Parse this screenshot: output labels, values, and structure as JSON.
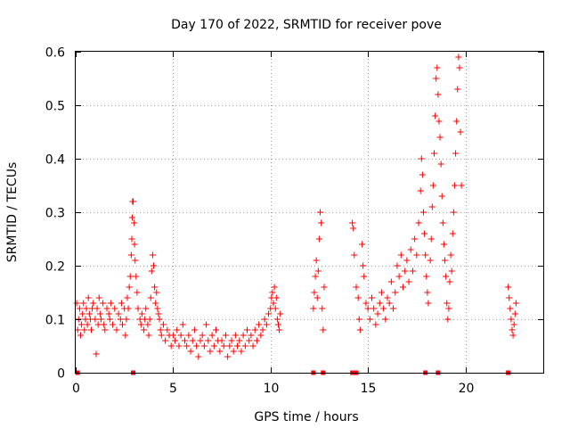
{
  "chart_data": {
    "type": "scatter",
    "title": "Day 170 of 2022, SRMTID for receiver pove",
    "xlabel": "GPS time / hours",
    "ylabel": "SRMTID / TECUs",
    "xlim": [
      0,
      24
    ],
    "ylim": [
      0,
      0.6
    ],
    "xticks": [
      0,
      5,
      10,
      15,
      20
    ],
    "yticks": [
      0,
      0.1,
      0.2,
      0.3,
      0.4,
      0.5,
      0.6
    ],
    "xtick_labels": [
      "0",
      "5",
      "10",
      "15",
      "20"
    ],
    "ytick_labels": [
      "0",
      "0.1",
      "0.2",
      "0.3",
      "0.4",
      "0.5",
      "0.6"
    ],
    "grid": true,
    "marker": "+",
    "color": "#ff0000",
    "series": [
      {
        "name": "SRMTID",
        "points": [
          [
            0.05,
            0.13
          ],
          [
            0.1,
            0.08
          ],
          [
            0.15,
            0.1
          ],
          [
            0.2,
            0.12
          ],
          [
            0.25,
            0.07
          ],
          [
            0.3,
            0.09
          ],
          [
            0.35,
            0.11
          ],
          [
            0.4,
            0.13
          ],
          [
            0.45,
            0.08
          ],
          [
            0.5,
            0.1
          ],
          [
            0.55,
            0.12
          ],
          [
            0.6,
            0.09
          ],
          [
            0.65,
            0.14
          ],
          [
            0.7,
            0.11
          ],
          [
            0.75,
            0.1
          ],
          [
            0.8,
            0.08
          ],
          [
            0.85,
            0.12
          ],
          [
            0.9,
            0.13
          ],
          [
            1.0,
            0.1
          ],
          [
            1.05,
            0.035
          ],
          [
            1.1,
            0.12
          ],
          [
            1.15,
            0.09
          ],
          [
            1.2,
            0.14
          ],
          [
            1.25,
            0.11
          ],
          [
            1.3,
            0.1
          ],
          [
            1.4,
            0.13
          ],
          [
            1.45,
            0.09
          ],
          [
            1.5,
            0.08
          ],
          [
            1.6,
            0.12
          ],
          [
            1.7,
            0.11
          ],
          [
            1.75,
            0.1
          ],
          [
            1.8,
            0.13
          ],
          [
            1.9,
            0.09
          ],
          [
            2.0,
            0.12
          ],
          [
            2.1,
            0.08
          ],
          [
            2.2,
            0.11
          ],
          [
            2.3,
            0.1
          ],
          [
            2.35,
            0.13
          ],
          [
            2.4,
            0.09
          ],
          [
            2.5,
            0.12
          ],
          [
            2.55,
            0.07
          ],
          [
            2.6,
            0.1
          ],
          [
            2.65,
            0.14
          ],
          [
            2.7,
            0.12
          ],
          [
            2.75,
            0.16
          ],
          [
            2.8,
            0.18
          ],
          [
            2.85,
            0.22
          ],
          [
            2.88,
            0.25
          ],
          [
            2.9,
            0.29
          ],
          [
            2.92,
            0.32
          ],
          [
            2.95,
            0.32
          ],
          [
            3.0,
            0.28
          ],
          [
            3.02,
            0.24
          ],
          [
            3.05,
            0.21
          ],
          [
            3.1,
            0.18
          ],
          [
            3.15,
            0.15
          ],
          [
            3.2,
            0.12
          ],
          [
            3.3,
            0.1
          ],
          [
            3.35,
            0.09
          ],
          [
            3.4,
            0.11
          ],
          [
            3.5,
            0.08
          ],
          [
            3.55,
            0.1
          ],
          [
            3.6,
            0.12
          ],
          [
            3.7,
            0.09
          ],
          [
            3.75,
            0.07
          ],
          [
            3.8,
            0.1
          ],
          [
            3.85,
            0.14
          ],
          [
            3.9,
            0.19
          ],
          [
            3.95,
            0.22
          ],
          [
            4.0,
            0.2
          ],
          [
            4.05,
            0.16
          ],
          [
            4.1,
            0.13
          ],
          [
            4.15,
            0.15
          ],
          [
            4.2,
            0.12
          ],
          [
            4.25,
            0.11
          ],
          [
            4.3,
            0.1
          ],
          [
            4.35,
            0.08
          ],
          [
            4.4,
            0.07
          ],
          [
            4.5,
            0.09
          ],
          [
            4.6,
            0.06
          ],
          [
            4.7,
            0.08
          ],
          [
            4.8,
            0.07
          ],
          [
            4.9,
            0.05
          ],
          [
            5.0,
            0.07
          ],
          [
            5.1,
            0.06
          ],
          [
            5.2,
            0.08
          ],
          [
            5.3,
            0.05
          ],
          [
            5.4,
            0.07
          ],
          [
            5.5,
            0.09
          ],
          [
            5.6,
            0.06
          ],
          [
            5.7,
            0.05
          ],
          [
            5.8,
            0.07
          ],
          [
            5.9,
            0.04
          ],
          [
            6.0,
            0.06
          ],
          [
            6.1,
            0.08
          ],
          [
            6.2,
            0.05
          ],
          [
            6.3,
            0.03
          ],
          [
            6.4,
            0.06
          ],
          [
            6.5,
            0.07
          ],
          [
            6.6,
            0.05
          ],
          [
            6.7,
            0.09
          ],
          [
            6.8,
            0.06
          ],
          [
            6.9,
            0.04
          ],
          [
            7.0,
            0.07
          ],
          [
            7.1,
            0.05
          ],
          [
            7.2,
            0.08
          ],
          [
            7.3,
            0.06
          ],
          [
            7.4,
            0.04
          ],
          [
            7.5,
            0.06
          ],
          [
            7.6,
            0.05
          ],
          [
            7.7,
            0.07
          ],
          [
            7.8,
            0.03
          ],
          [
            7.9,
            0.05
          ],
          [
            8.0,
            0.06
          ],
          [
            8.1,
            0.04
          ],
          [
            8.2,
            0.07
          ],
          [
            8.3,
            0.05
          ],
          [
            8.4,
            0.06
          ],
          [
            8.5,
            0.04
          ],
          [
            8.6,
            0.07
          ],
          [
            8.7,
            0.05
          ],
          [
            8.8,
            0.08
          ],
          [
            8.9,
            0.06
          ],
          [
            9.0,
            0.07
          ],
          [
            9.1,
            0.05
          ],
          [
            9.2,
            0.08
          ],
          [
            9.3,
            0.06
          ],
          [
            9.4,
            0.09
          ],
          [
            9.5,
            0.07
          ],
          [
            9.6,
            0.08
          ],
          [
            9.7,
            0.1
          ],
          [
            9.8,
            0.09
          ],
          [
            9.9,
            0.11
          ],
          [
            10.0,
            0.12
          ],
          [
            10.05,
            0.14
          ],
          [
            10.1,
            0.15
          ],
          [
            10.15,
            0.13
          ],
          [
            10.2,
            0.16
          ],
          [
            10.25,
            0.12
          ],
          [
            10.3,
            0.14
          ],
          [
            10.35,
            0.1
          ],
          [
            10.4,
            0.09
          ],
          [
            10.45,
            0.08
          ],
          [
            10.5,
            0.11
          ],
          [
            12.2,
            0.12
          ],
          [
            12.25,
            0.15
          ],
          [
            12.3,
            0.18
          ],
          [
            12.35,
            0.21
          ],
          [
            12.4,
            0.14
          ],
          [
            12.45,
            0.19
          ],
          [
            12.5,
            0.25
          ],
          [
            12.55,
            0.3
          ],
          [
            12.6,
            0.28
          ],
          [
            12.65,
            0.12
          ],
          [
            12.7,
            0.08
          ],
          [
            12.75,
            0.16
          ],
          [
            14.2,
            0.28
          ],
          [
            14.25,
            0.27
          ],
          [
            14.3,
            0.22
          ],
          [
            14.4,
            0.16
          ],
          [
            14.5,
            0.14
          ],
          [
            14.55,
            0.1
          ],
          [
            14.6,
            0.08
          ],
          [
            14.7,
            0.24
          ],
          [
            14.75,
            0.2
          ],
          [
            14.8,
            0.18
          ],
          [
            14.9,
            0.13
          ],
          [
            15.0,
            0.12
          ],
          [
            15.1,
            0.1
          ],
          [
            15.2,
            0.14
          ],
          [
            15.3,
            0.12
          ],
          [
            15.4,
            0.09
          ],
          [
            15.5,
            0.11
          ],
          [
            15.6,
            0.13
          ],
          [
            15.7,
            0.15
          ],
          [
            15.8,
            0.12
          ],
          [
            15.9,
            0.1
          ],
          [
            16.0,
            0.14
          ],
          [
            16.1,
            0.13
          ],
          [
            16.2,
            0.17
          ],
          [
            16.3,
            0.12
          ],
          [
            16.4,
            0.15
          ],
          [
            16.5,
            0.2
          ],
          [
            16.6,
            0.18
          ],
          [
            16.7,
            0.22
          ],
          [
            16.8,
            0.16
          ],
          [
            16.9,
            0.19
          ],
          [
            17.0,
            0.21
          ],
          [
            17.1,
            0.17
          ],
          [
            17.2,
            0.23
          ],
          [
            17.3,
            0.19
          ],
          [
            17.4,
            0.25
          ],
          [
            17.5,
            0.22
          ],
          [
            17.6,
            0.28
          ],
          [
            17.7,
            0.34
          ],
          [
            17.75,
            0.4
          ],
          [
            17.8,
            0.37
          ],
          [
            17.85,
            0.3
          ],
          [
            17.9,
            0.26
          ],
          [
            17.95,
            0.22
          ],
          [
            18.0,
            0.18
          ],
          [
            18.05,
            0.15
          ],
          [
            18.1,
            0.13
          ],
          [
            18.2,
            0.21
          ],
          [
            18.25,
            0.25
          ],
          [
            18.3,
            0.31
          ],
          [
            18.35,
            0.35
          ],
          [
            18.4,
            0.41
          ],
          [
            18.45,
            0.48
          ],
          [
            18.5,
            0.55
          ],
          [
            18.55,
            0.57
          ],
          [
            18.6,
            0.52
          ],
          [
            18.65,
            0.47
          ],
          [
            18.7,
            0.44
          ],
          [
            18.75,
            0.39
          ],
          [
            18.8,
            0.33
          ],
          [
            18.85,
            0.28
          ],
          [
            18.9,
            0.24
          ],
          [
            18.95,
            0.21
          ],
          [
            19.0,
            0.18
          ],
          [
            19.05,
            0.13
          ],
          [
            19.1,
            0.1
          ],
          [
            19.15,
            0.12
          ],
          [
            19.2,
            0.17
          ],
          [
            19.25,
            0.22
          ],
          [
            19.3,
            0.19
          ],
          [
            19.35,
            0.26
          ],
          [
            19.4,
            0.3
          ],
          [
            19.45,
            0.35
          ],
          [
            19.5,
            0.41
          ],
          [
            19.55,
            0.47
          ],
          [
            19.6,
            0.53
          ],
          [
            19.65,
            0.59
          ],
          [
            19.7,
            0.57
          ],
          [
            19.75,
            0.45
          ],
          [
            19.8,
            0.35
          ],
          [
            22.2,
            0.16
          ],
          [
            22.25,
            0.14
          ],
          [
            22.3,
            0.12
          ],
          [
            22.35,
            0.1
          ],
          [
            22.4,
            0.08
          ],
          [
            22.45,
            0.07
          ],
          [
            22.5,
            0.09
          ],
          [
            22.55,
            0.11
          ],
          [
            22.6,
            0.13
          ]
        ]
      }
    ],
    "zero_markers": [
      0.1,
      2.95,
      12.2,
      12.7,
      14.2,
      14.4,
      17.95,
      18.6,
      22.2
    ]
  }
}
